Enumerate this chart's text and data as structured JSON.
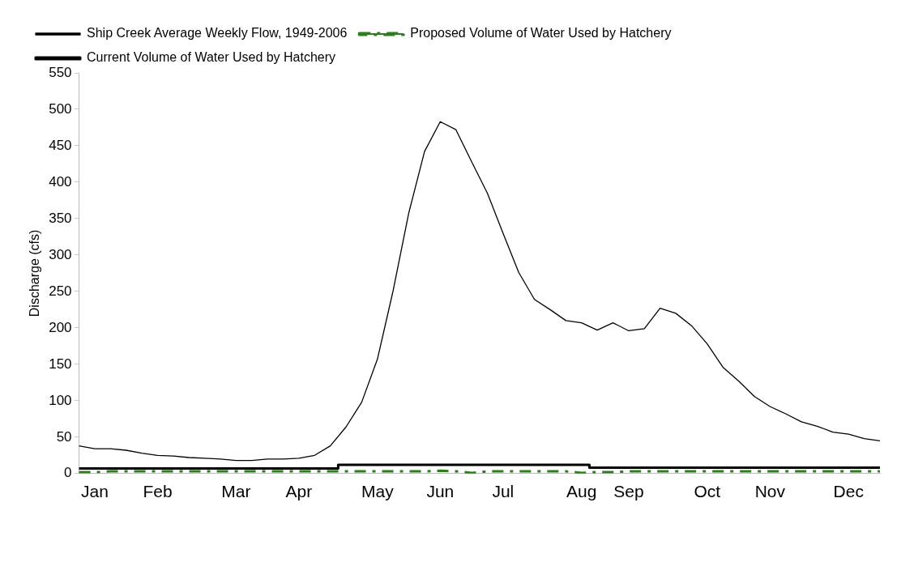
{
  "chart_data": {
    "type": "line",
    "ylabel": "Discharge (cfs)",
    "categories": [
      null,
      "Jan",
      null,
      null,
      null,
      "Feb",
      null,
      null,
      null,
      null,
      "Mar",
      null,
      null,
      null,
      "Apr",
      null,
      null,
      null,
      null,
      "May",
      null,
      null,
      null,
      "Jun",
      null,
      null,
      null,
      "Jul",
      null,
      null,
      null,
      null,
      "Aug",
      null,
      null,
      "Sep",
      null,
      null,
      null,
      null,
      "Oct",
      null,
      null,
      null,
      "Nov",
      null,
      null,
      null,
      null,
      "Dec",
      null,
      null
    ],
    "ylim": [
      0,
      550
    ],
    "yticks": [
      0,
      50,
      100,
      150,
      200,
      250,
      300,
      350,
      400,
      450,
      500,
      550
    ],
    "grid": false,
    "legend": "top",
    "marker": "none",
    "series": [
      {
        "name": "Ship Creek Average Weekly Flow, 1949-2006",
        "color": "#000000",
        "line_style": "solid",
        "values": [
          38,
          34,
          34,
          32,
          28,
          25,
          24,
          22,
          21,
          20,
          18,
          18,
          20,
          20,
          21,
          25,
          38,
          64,
          98,
          157,
          251,
          358,
          442,
          483,
          472,
          428,
          385,
          330,
          276,
          239,
          225,
          210,
          207,
          197,
          207,
          196,
          199,
          227,
          220,
          203,
          178,
          146,
          127,
          106,
          92,
          82,
          71,
          65,
          57,
          54,
          48,
          45
        ]
      },
      {
        "name": "Proposed Volume of Water Used by Hatchery",
        "color": "#2e7d1e",
        "line_style": "dashed",
        "values": [
          2,
          2,
          3,
          3,
          3,
          3,
          3,
          3,
          3,
          3,
          3,
          3,
          3,
          3,
          3,
          3,
          3,
          3,
          3,
          3,
          3,
          3,
          3,
          4,
          3,
          1,
          3,
          3,
          3,
          3,
          3,
          3,
          1,
          2,
          2,
          3,
          3,
          3,
          3,
          3,
          3,
          3,
          3,
          3,
          3,
          3,
          3,
          3,
          3,
          3,
          3,
          3
        ]
      },
      {
        "name": "Current Volume of Water Used by Hatchery",
        "type": "step",
        "color": "#000000",
        "line_style": "solid",
        "values": [
          7,
          7,
          7,
          7,
          7,
          7,
          7,
          7,
          7,
          7,
          7,
          7,
          7,
          7,
          7,
          7,
          7,
          12,
          12,
          12,
          12,
          12,
          12,
          12,
          12,
          12,
          12,
          12,
          12,
          12,
          12,
          12,
          12,
          8,
          8,
          8,
          8,
          8,
          8,
          8,
          8,
          8,
          8,
          8,
          8,
          8,
          8,
          8,
          8,
          8,
          8,
          8
        ]
      }
    ]
  }
}
